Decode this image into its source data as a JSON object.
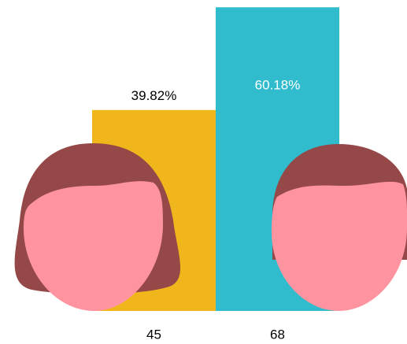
{
  "chart_data": {
    "type": "bar",
    "categories": [
      "45",
      "68"
    ],
    "values": [
      39.82,
      60.18
    ],
    "value_labels": [
      "39.82%",
      "60.18%"
    ],
    "colors": [
      "#f2b61d",
      "#30bccc"
    ],
    "ylim": [
      0,
      61
    ]
  }
}
